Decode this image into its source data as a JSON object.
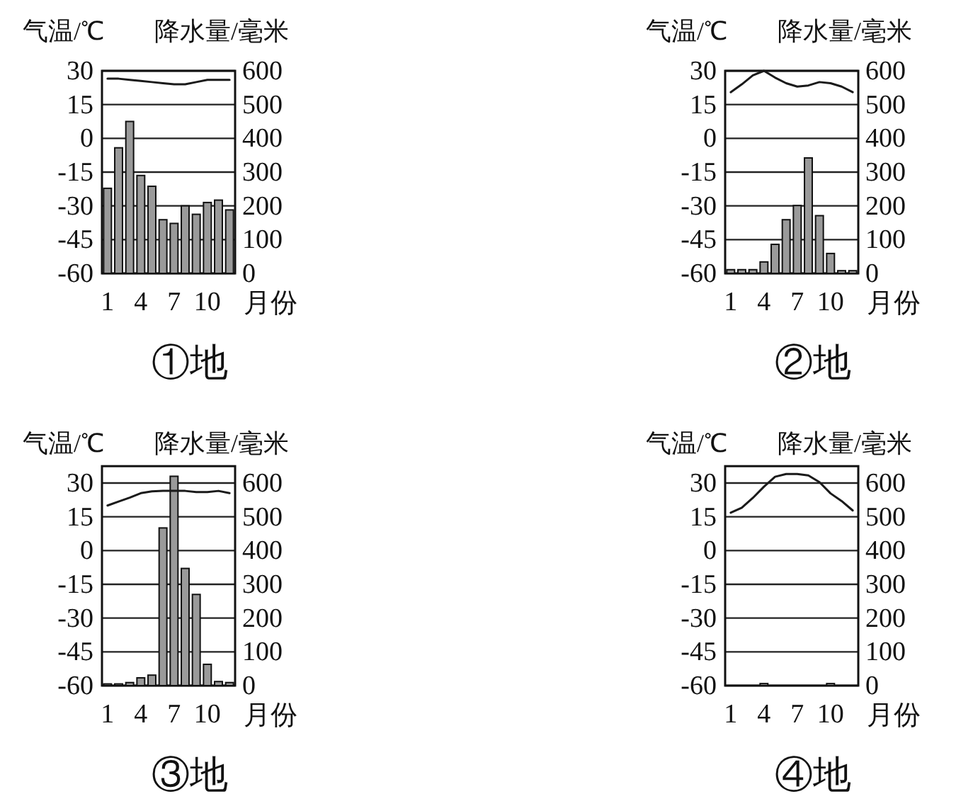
{
  "chart_data": [
    {
      "type": "bar",
      "title": "①地",
      "xlabel": "月份",
      "ylabel": "气温/℃",
      "y2label": "降水量/毫米",
      "categories": [
        "1",
        null,
        null,
        "4",
        null,
        null,
        "7",
        null,
        null,
        "10",
        null,
        null
      ],
      "ylim": [
        -60,
        30
      ],
      "yticks": [
        -60,
        -45,
        -30,
        -15,
        0,
        15,
        30
      ],
      "y2lim": [
        0,
        600
      ],
      "y2ticks": [
        0,
        100,
        200,
        300,
        400,
        500,
        600
      ],
      "grid": "y",
      "series": [
        {
          "axis": "y2",
          "color": "#9a9a9a",
          "values": [
            252,
            372,
            450,
            290,
            258,
            159,
            148,
            200,
            175,
            210,
            217,
            188
          ]
        },
        {
          "type": "line",
          "axis": "y",
          "color": "#1a1a1a",
          "values": [
            26.5,
            26.5,
            26,
            25.5,
            25,
            24.5,
            24,
            24,
            25,
            26,
            26,
            26
          ]
        }
      ]
    },
    {
      "type": "bar",
      "title": "②地",
      "xlabel": "月份",
      "ylabel": "气温/℃",
      "y2label": "降水量/毫米",
      "categories": [
        "1",
        null,
        null,
        "4",
        null,
        null,
        "7",
        null,
        null,
        "10",
        null,
        null
      ],
      "ylim": [
        -60,
        30
      ],
      "yticks": [
        -60,
        -45,
        -30,
        -15,
        0,
        15,
        30
      ],
      "y2lim": [
        0,
        600
      ],
      "y2ticks": [
        0,
        100,
        200,
        300,
        400,
        500,
        600
      ],
      "grid": "y",
      "series": [
        {
          "axis": "y2",
          "color": "#9a9a9a",
          "values": [
            11,
            11,
            11,
            34,
            86,
            159,
            201,
            342,
            171,
            59,
            8,
            8
          ]
        },
        {
          "type": "line",
          "axis": "y",
          "color": "#1a1a1a",
          "values": [
            20.5,
            24,
            28,
            30,
            27,
            24.5,
            23,
            23.5,
            25,
            24.5,
            23,
            20.5
          ]
        }
      ]
    },
    {
      "type": "bar",
      "title": "③地",
      "xlabel": "月份",
      "ylabel": "气温/℃",
      "y2label": "降水量/毫米",
      "categories": [
        "1",
        null,
        null,
        "4",
        null,
        null,
        "7",
        null,
        null,
        "10",
        null,
        null
      ],
      "ylim": [
        -60,
        37.5
      ],
      "yticks": [
        -60,
        -45,
        -30,
        -15,
        0,
        15,
        30
      ],
      "y2lim": [
        0,
        650
      ],
      "y2ticks": [
        0,
        100,
        200,
        300,
        400,
        500,
        600
      ],
      "grid": "y",
      "series": [
        {
          "axis": "y2",
          "color": "#9a9a9a",
          "values": [
            5,
            5,
            9,
            23,
            31,
            467,
            620,
            347,
            270,
            63,
            12,
            9
          ]
        },
        {
          "type": "line",
          "axis": "y",
          "color": "#1a1a1a",
          "values": [
            20,
            21.8,
            23.5,
            25.5,
            26.3,
            26.5,
            26.5,
            26.5,
            26,
            26,
            26.5,
            25.5
          ]
        }
      ]
    },
    {
      "type": "bar",
      "title": "④地",
      "xlabel": "月份",
      "ylabel": "气温/℃",
      "y2label": "降水量/毫米",
      "categories": [
        "1",
        null,
        null,
        "4",
        null,
        null,
        "7",
        null,
        null,
        "10",
        null,
        null
      ],
      "ylim": [
        -60,
        37.5
      ],
      "yticks": [
        -60,
        -45,
        -30,
        -15,
        0,
        15,
        30
      ],
      "y2lim": [
        0,
        650
      ],
      "y2ticks": [
        0,
        100,
        200,
        300,
        400,
        500,
        600
      ],
      "grid": "y",
      "series": [
        {
          "axis": "y2",
          "color": "#9a9a9a",
          "values": [
            0,
            0,
            0,
            6,
            0,
            0,
            0,
            0,
            0,
            6,
            0,
            0
          ]
        },
        {
          "type": "line",
          "axis": "y",
          "color": "#1a1a1a",
          "values": [
            16.8,
            19,
            23.4,
            28.4,
            32.8,
            34,
            34,
            33.4,
            30.4,
            25.4,
            22,
            17.8
          ]
        }
      ]
    }
  ]
}
